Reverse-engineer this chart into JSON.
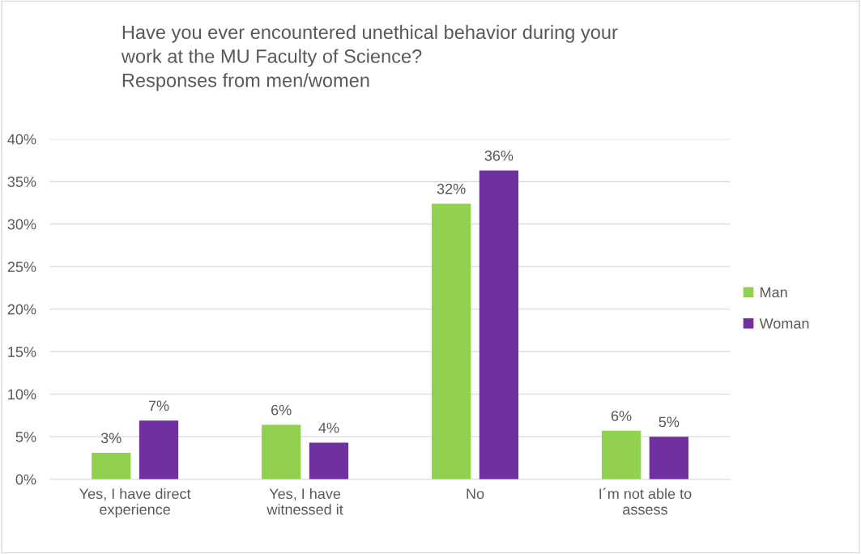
{
  "chart_data": {
    "type": "bar",
    "title": "Have you ever encountered unethical behavior during your\nwork at the MU Faculty of Science?\nResponses from men/women",
    "categories": [
      "Yes, I have direct\nexperience",
      "Yes, I have\nwitnessed it",
      "No",
      "I´m not able to\nassess"
    ],
    "series": [
      {
        "name": "Man",
        "color": "#92d050",
        "values": [
          3.1,
          6.4,
          32.4,
          5.7
        ],
        "value_labels": [
          "3%",
          "6%",
          "32%",
          "6%"
        ]
      },
      {
        "name": "Woman",
        "color": "#7030a0",
        "values": [
          6.9,
          4.3,
          36.3,
          5.0
        ],
        "value_labels": [
          "7%",
          "4%",
          "36%",
          "5%"
        ]
      }
    ],
    "ylim": [
      0,
      40
    ],
    "yticks": [
      {
        "value": 0,
        "label": "0%"
      },
      {
        "value": 5,
        "label": "5%"
      },
      {
        "value": 10,
        "label": "10%"
      },
      {
        "value": 15,
        "label": "15%"
      },
      {
        "value": 20,
        "label": "20%"
      },
      {
        "value": 25,
        "label": "25%"
      },
      {
        "value": 30,
        "label": "30%"
      },
      {
        "value": 35,
        "label": "35%"
      },
      {
        "value": 40,
        "label": "40%"
      }
    ],
    "grid": "y",
    "legend": "right"
  }
}
